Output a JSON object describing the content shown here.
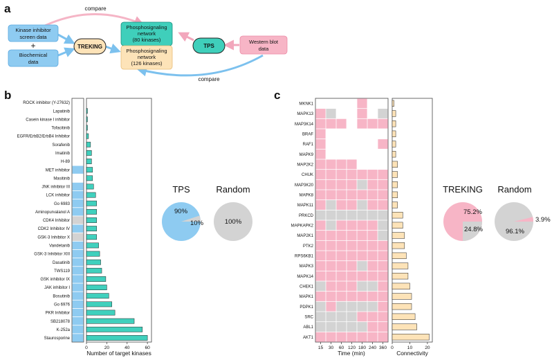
{
  "colors": {
    "blue": "#8ecbf1",
    "blue_edge": "#5aa8e0",
    "teal": "#3fcfbb",
    "teal_edge": "#1a8f7f",
    "pink": "#f7b5c6",
    "pink_edge": "#ec8aa5",
    "orange": "#fde3b8",
    "orange_edge": "#e8bf7a",
    "gray": "#d3d3d3",
    "bar_teal": "#40d0bd"
  },
  "panel_a": {
    "label": "a",
    "kinase_box": [
      "Kinase inhibitor",
      "screen data"
    ],
    "plus": "+",
    "biochem_box": [
      "Biochemical",
      "data"
    ],
    "treking": "TREKING",
    "network80": [
      "Phosphosignaling",
      "network",
      "(80 kinases)"
    ],
    "network126": [
      "Phosphosignaling",
      "network",
      "(126 kinases)"
    ],
    "tps": "TPS",
    "western": [
      "Western blot",
      "data"
    ],
    "compare_top": "compare",
    "compare_bottom": "compare"
  },
  "panel_b": {
    "label": "b",
    "pie_left_title": "TPS",
    "pie_left_labels": [
      "90%",
      "10%"
    ],
    "pie_right_title": "Random",
    "pie_right_label": "100%"
  },
  "panel_c": {
    "label": "c",
    "pie_left_title": "TREKING",
    "pie_left_labels": [
      "75.2%",
      "24.8%"
    ],
    "pie_right_title": "Random",
    "pie_right_labels": [
      "3.9%",
      "96.1%"
    ]
  },
  "chart_data": [
    {
      "type": "bar",
      "orientation": "horizontal",
      "xlabel": "Number of target kinases",
      "xticks": [
        0,
        20,
        40,
        60
      ],
      "xlim": [
        0,
        64
      ],
      "categories": [
        "ROCK inhibitor (Y-27632)",
        "Lapatinib",
        "Casein kinase I inhibitor",
        "Tofacitinib",
        "EGFR/ErbB2/ErbB4 Inhibitor",
        "Sorafenib",
        "Imatinib",
        "H-89",
        "MET inhibitor",
        "Masitinib",
        "JNK inhibitor III",
        "LCK inhibitor",
        "Go 6983",
        "Aminopurvalanol A",
        "CDK4 Inhibitor",
        "CDK2 Inhibitor IV",
        "GSK-3 Inhibitor X",
        "Vandetanib",
        "GSK-3 Inhibitor XIII",
        "Dasatinib",
        "TWS119",
        "GSK inhibitor IX",
        "JAK inhibitor I",
        "Bosutinib",
        "Go 6976",
        "PKR Inhibitor",
        "SB218078",
        "K-252a",
        "Staurosporine"
      ],
      "values": [
        0,
        1,
        1,
        1,
        2,
        4,
        5,
        5,
        6,
        6,
        7,
        9,
        10,
        10,
        10,
        10,
        10,
        12,
        13,
        14,
        15,
        19,
        20,
        22,
        25,
        28,
        47,
        55,
        60
      ],
      "tps_match": [
        "none",
        "none",
        "none",
        "none",
        "none",
        "none",
        "none",
        "none",
        "blue",
        "none",
        "blue",
        "blue",
        "blue",
        "blue",
        "gray",
        "blue",
        "gray",
        "blue",
        "blue",
        "blue",
        "blue",
        "blue",
        "blue",
        "blue",
        "blue",
        "blue",
        "blue",
        "blue",
        "blue"
      ]
    },
    {
      "type": "heatmap",
      "xlabel": "Time (min)",
      "xticks": [
        "15",
        "30",
        "60",
        "120",
        "180",
        "240",
        "360"
      ],
      "rows": [
        "MKNK1",
        "MAPK13",
        "MAP3K14",
        "BRAF",
        "RAF1",
        "MAPK9",
        "MAP2K2",
        "CHUK",
        "MAP3K20",
        "MAPK8",
        "MAPK11",
        "PRKCD",
        "MAPKAPK2",
        "MAP2K1",
        "PTK2",
        "RPS6KB1",
        "MAPK3",
        "MAPK14",
        "CHEK1",
        "MAPK1",
        "PDPK1",
        "SRC",
        "ABL1",
        "AKT1"
      ],
      "legend": {
        "P": "pink",
        "G": "gray",
        ".": "white"
      },
      "cells": [
        "....P..",
        "PG..P.G",
        "PPP.PPP",
        "P......",
        "P.....P",
        "P......",
        "PPPP...",
        "PPPPPPP",
        "PPPPGPP",
        "PPPPPPP",
        "PGPPGPP",
        "GGGGGGG",
        "PGPPPPG",
        "PPPPPPG",
        "PPPPPPP",
        "PPPPPPP",
        "PPPPGPP",
        "PPPPPPP",
        "GPPPGGP",
        "PPPPPPP",
        "GPGGGGP",
        "GGGGPPP",
        "GGGGGPP",
        "PPPPPPP"
      ]
    },
    {
      "type": "bar",
      "orientation": "horizontal",
      "xlabel": "Connectivity",
      "xticks": [
        0,
        10,
        20
      ],
      "xlim": [
        0,
        22
      ],
      "categories": [
        "MKNK1",
        "MAPK13",
        "MAP3K14",
        "BRAF",
        "RAF1",
        "MAPK9",
        "MAP2K2",
        "CHUK",
        "MAP3K20",
        "MAPK8",
        "MAPK11",
        "PRKCD",
        "MAPKAPK2",
        "MAP2K1",
        "PTK2",
        "RPS6KB1",
        "MAPK3",
        "MAPK14",
        "CHEK1",
        "MAPK1",
        "PDPK1",
        "SRC",
        "ABL1",
        "AKT1"
      ],
      "values": [
        1,
        2,
        2,
        2,
        2,
        2,
        3,
        3,
        3,
        3,
        3,
        6,
        6,
        7,
        7,
        8,
        9,
        9,
        10,
        11,
        11,
        13,
        14,
        21
      ]
    }
  ]
}
